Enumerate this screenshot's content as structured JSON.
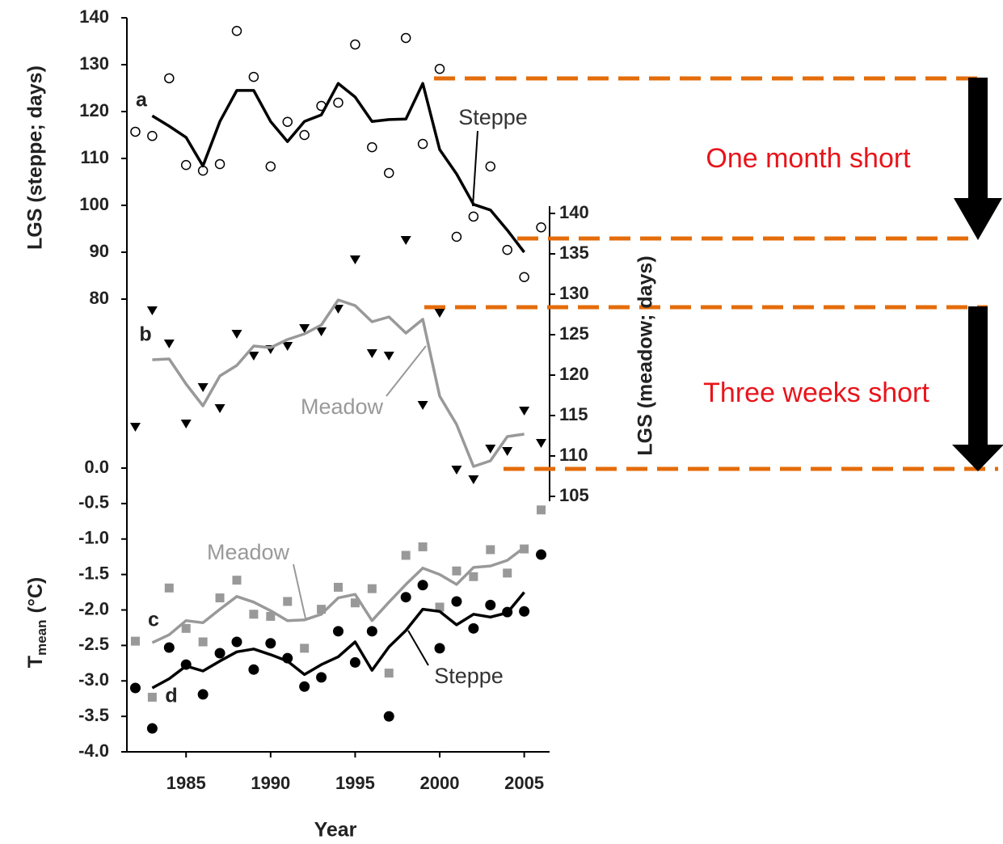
{
  "chart_data": [
    {
      "type": "line",
      "ylabel": "LGS (steppe; days)",
      "annotations": [
        "a"
      ],
      "x": [
        1982,
        1983,
        1984,
        1985,
        1986,
        1987,
        1988,
        1989,
        1990,
        1991,
        1992,
        1993,
        1994,
        1995,
        1996,
        1997,
        1998,
        1999,
        2000,
        2001,
        2002,
        2003,
        2004,
        2005,
        2006
      ],
      "xlim": [
        1981.5,
        2006.5
      ],
      "ylim": [
        80,
        140
      ],
      "yticks": [
        80,
        90,
        100,
        110,
        120,
        130,
        140
      ],
      "y_axis_position": "left",
      "series": [
        {
          "marker": "open-circle",
          "color": "#000000",
          "values": [
            115.7,
            114.8,
            127.1,
            108.6,
            107.4,
            108.8,
            137.2,
            127.4,
            108.3,
            117.8,
            115,
            121.2,
            121.9,
            134.3,
            112.4,
            106.9,
            135.7,
            113.1,
            129.1,
            93.3,
            97.6,
            108.3,
            90.5,
            84.7,
            95.3
          ]
        },
        {
          "name": "Steppe",
          "color": "#000000",
          "values": [
            null,
            119.1,
            116.9,
            114.5,
            108.4,
            117.9,
            124.5,
            124.5,
            117.9,
            113.6,
            117.9,
            119.3,
            126,
            123.1,
            117.9,
            118.3,
            118.4,
            126,
            111.9,
            106.7,
            100.2,
            99,
            94.7,
            90,
            null
          ]
        }
      ]
    },
    {
      "type": "line",
      "ylabel": "LGS (meadow; days)",
      "annotations": [
        "b"
      ],
      "x": [
        1982,
        1983,
        1984,
        1985,
        1986,
        1987,
        1988,
        1989,
        1990,
        1991,
        1992,
        1993,
        1994,
        1995,
        1996,
        1997,
        1998,
        1999,
        2000,
        2001,
        2002,
        2003,
        2004,
        2005,
        2006
      ],
      "xlim": [
        1981.5,
        2006.5
      ],
      "ylim": [
        105,
        140
      ],
      "yticks": [
        105,
        110,
        115,
        120,
        125,
        130,
        135,
        140
      ],
      "y_axis_position": "right",
      "series": [
        {
          "marker": "triangle-down",
          "color": "#000000",
          "values": [
            113.6,
            128,
            123.9,
            114,
            118.5,
            115.9,
            125.1,
            122.4,
            123.2,
            123.6,
            125.8,
            125.4,
            128.2,
            134.3,
            122.7,
            122.4,
            136.7,
            116.3,
            127.7,
            108.3,
            107.1,
            110.9,
            110.6,
            115.6,
            111.6
          ]
        },
        {
          "name": "Meadow",
          "color": "#999999",
          "values": [
            null,
            121.9,
            122,
            118.9,
            116.2,
            119.9,
            121.2,
            123.6,
            123.4,
            124.4,
            125.1,
            126.2,
            129.3,
            128.6,
            126.6,
            127.2,
            125.2,
            126.9,
            117.4,
            113.9,
            108.7,
            109.4,
            112.4,
            112.7,
            null
          ]
        }
      ]
    },
    {
      "type": "line",
      "ylabel_main": "T",
      "ylabel_sub": "mean",
      "ylabel_unit": "(°C)",
      "xlabel": "Year",
      "annotations": [
        "c",
        "d"
      ],
      "x": [
        1982,
        1983,
        1984,
        1985,
        1986,
        1987,
        1988,
        1989,
        1990,
        1991,
        1992,
        1993,
        1994,
        1995,
        1996,
        1997,
        1998,
        1999,
        2000,
        2001,
        2002,
        2003,
        2004,
        2005,
        2006
      ],
      "xlim": [
        1981.5,
        2006.5
      ],
      "xticks": [
        1985,
        1990,
        1995,
        2000,
        2005
      ],
      "ylim": [
        -4,
        0
      ],
      "y_axis_position": "left",
      "yticks": [
        {
          "value": 0,
          "label": "0.0"
        },
        -0.5,
        {
          "value": -1,
          "label": "-1.0"
        },
        -1.5,
        {
          "value": -2,
          "label": "-2.0"
        },
        -2.5,
        {
          "value": -3,
          "label": "-3.0"
        },
        -3.5,
        {
          "value": -4,
          "label": "-4.0"
        }
      ],
      "series": [
        {
          "marker": "square",
          "color": "#999999",
          "values": [
            -2.44,
            -3.23,
            -1.69,
            -2.26,
            -2.45,
            -1.83,
            -1.58,
            -2.06,
            -2.09,
            -1.88,
            -2.54,
            -1.99,
            -1.68,
            -1.9,
            -1.7,
            -2.89,
            -1.23,
            -1.11,
            -1.96,
            -1.45,
            -1.53,
            -1.15,
            -1.48,
            -1.14,
            -0.59
          ]
        },
        {
          "name": "Meadow",
          "color": "#999999",
          "values": [
            null,
            -2.46,
            -2.35,
            -2.15,
            -2.18,
            -1.99,
            -1.81,
            -1.89,
            -2.01,
            -2.15,
            -2.14,
            -2.06,
            -1.83,
            -1.78,
            -2.15,
            -1.89,
            -1.64,
            -1.41,
            -1.5,
            -1.64,
            -1.4,
            -1.38,
            -1.3,
            -1.12,
            null
          ]
        },
        {
          "marker": "filled-circle",
          "color": "#000000",
          "values": [
            -3.1,
            -3.67,
            -2.53,
            -2.77,
            -3.19,
            -2.61,
            -2.45,
            -2.84,
            -2.47,
            -2.68,
            -3.08,
            -2.95,
            -2.3,
            -2.74,
            -2.3,
            -3.5,
            -1.82,
            -1.65,
            -2.54,
            -1.88,
            -2.26,
            -1.93,
            -2.03,
            -2.02,
            -1.22
          ]
        },
        {
          "name": "Steppe",
          "color": "#000000",
          "values": [
            null,
            -3.1,
            -2.97,
            -2.79,
            -2.86,
            -2.72,
            -2.59,
            -2.55,
            -2.63,
            -2.72,
            -2.91,
            -2.77,
            -2.66,
            -2.45,
            -2.85,
            -2.52,
            -2.29,
            -1.99,
            -2.02,
            -2.21,
            -2.06,
            -2.1,
            -2.04,
            -1.75,
            null
          ]
        }
      ]
    }
  ],
  "annotations": [
    "One month short",
    "Three weeks short"
  ]
}
